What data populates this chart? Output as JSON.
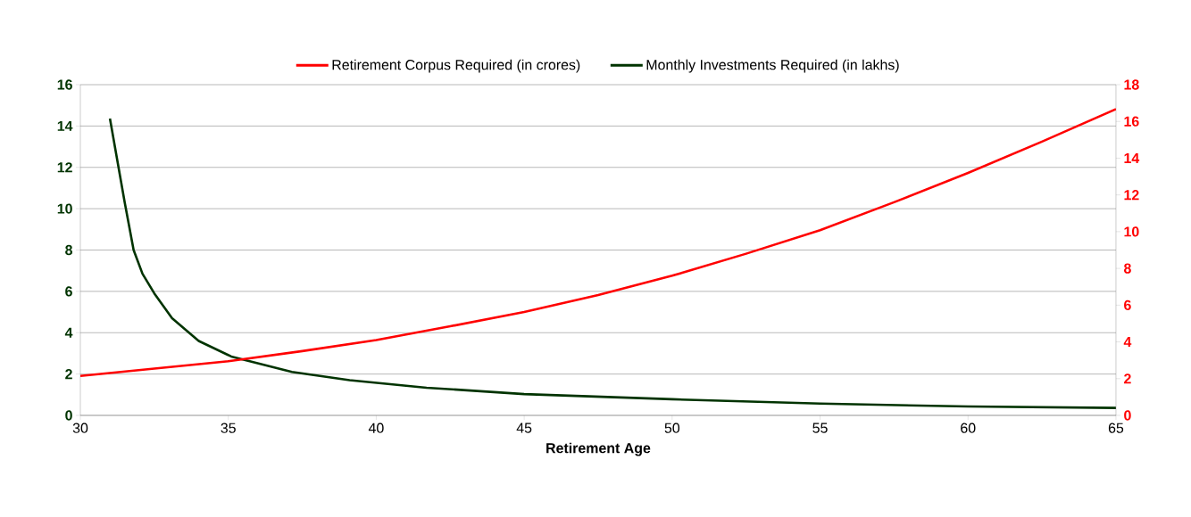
{
  "chart_data": {
    "type": "line",
    "xlabel": "Retirement Age",
    "xlim": [
      30,
      65
    ],
    "xticks": [
      30,
      35,
      40,
      45,
      50,
      55,
      60,
      65
    ],
    "ylim": [
      0,
      16
    ],
    "yticks": [
      0,
      2,
      4,
      6,
      8,
      10,
      12,
      14,
      16
    ],
    "y2lim": [
      0,
      18
    ],
    "y2ticks": [
      0,
      2,
      4,
      6,
      8,
      10,
      12,
      14,
      16,
      18
    ],
    "grid": "y",
    "legend": "top",
    "marker": "none",
    "line_style": "solid",
    "series": [
      {
        "name": "Retirement Corpus Required (in crores)",
        "color": "#ff0000",
        "axis": "y2",
        "x": [
          30,
          32.5,
          35,
          37.5,
          40,
          42.5,
          45,
          47.5,
          50,
          52.5,
          55,
          57.5,
          60,
          62.5,
          65
        ],
        "values": [
          2.15,
          2.55,
          2.95,
          3.5,
          4.1,
          4.85,
          5.63,
          6.55,
          7.6,
          8.8,
          10.08,
          11.6,
          13.2,
          14.9,
          16.67
        ]
      },
      {
        "name": "Monthly Investments Required (in lakhs)",
        "color": "#003300",
        "axis": "y",
        "x": [
          31,
          31.5,
          31.8,
          32.1,
          32.5,
          33.1,
          34,
          35.1,
          37.15,
          39.1,
          41.7,
          45,
          50,
          55,
          60,
          65
        ],
        "values": [
          14.36,
          10.3,
          8.0,
          6.85,
          5.9,
          4.7,
          3.6,
          2.85,
          2.1,
          1.7,
          1.34,
          1.03,
          0.78,
          0.57,
          0.43,
          0.36
        ]
      }
    ]
  }
}
